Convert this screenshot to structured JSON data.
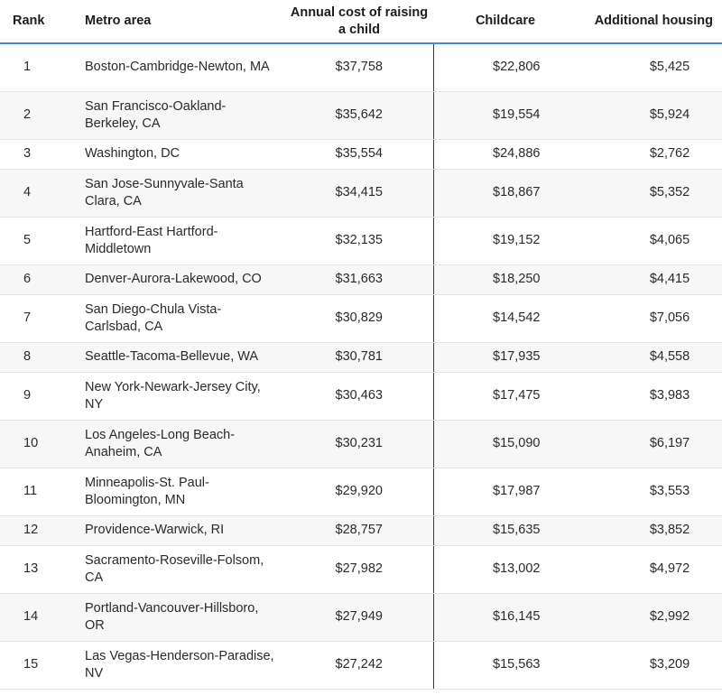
{
  "table": {
    "headers": {
      "rank": "Rank",
      "metro": "Metro area",
      "annual": "Annual cost of raising a child",
      "childcare": "Childcare",
      "housing": "Additional housing"
    },
    "rows": [
      {
        "rank": "1",
        "metro": "Boston-Cambridge-Newton, MA",
        "annual": "$37,758",
        "childcare": "$22,806",
        "housing": "$5,425"
      },
      {
        "rank": "2",
        "metro": "San Francisco-Oakland-Berkeley, CA",
        "annual": "$35,642",
        "childcare": "$19,554",
        "housing": "$5,924"
      },
      {
        "rank": "3",
        "metro": "Washington, DC",
        "annual": "$35,554",
        "childcare": "$24,886",
        "housing": "$2,762"
      },
      {
        "rank": "4",
        "metro": "San Jose-Sunnyvale-Santa Clara, CA",
        "annual": "$34,415",
        "childcare": "$18,867",
        "housing": "$5,352"
      },
      {
        "rank": "5",
        "metro": "Hartford-East Hartford-Middletown",
        "annual": "$32,135",
        "childcare": "$19,152",
        "housing": "$4,065"
      },
      {
        "rank": "6",
        "metro": "Denver-Aurora-Lakewood, CO",
        "annual": "$31,663",
        "childcare": "$18,250",
        "housing": "$4,415"
      },
      {
        "rank": "7",
        "metro": "San Diego-Chula Vista-Carlsbad, CA",
        "annual": "$30,829",
        "childcare": "$14,542",
        "housing": "$7,056"
      },
      {
        "rank": "8",
        "metro": "Seattle-Tacoma-Bellevue, WA",
        "annual": "$30,781",
        "childcare": "$17,935",
        "housing": "$4,558"
      },
      {
        "rank": "9",
        "metro": "New York-Newark-Jersey City, NY",
        "annual": "$30,463",
        "childcare": "$17,475",
        "housing": "$3,983"
      },
      {
        "rank": "10",
        "metro": "Los Angeles-Long Beach-Anaheim, CA",
        "annual": "$30,231",
        "childcare": "$15,090",
        "housing": "$6,197"
      },
      {
        "rank": "11",
        "metro": "Minneapolis-St. Paul-Bloomington, MN",
        "annual": "$29,920",
        "childcare": "$17,987",
        "housing": "$3,553"
      },
      {
        "rank": "12",
        "metro": "Providence-Warwick, RI",
        "annual": "$28,757",
        "childcare": "$15,635",
        "housing": "$3,852"
      },
      {
        "rank": "13",
        "metro": "Sacramento-Roseville-Folsom, CA",
        "annual": "$27,982",
        "childcare": "$13,002",
        "housing": "$4,972"
      },
      {
        "rank": "14",
        "metro": "Portland-Vancouver-Hillsboro, OR",
        "annual": "$27,949",
        "childcare": "$16,145",
        "housing": "$2,992"
      },
      {
        "rank": "15",
        "metro": "Las Vegas-Henderson-Paradise, NV",
        "annual": "$27,242",
        "childcare": "$15,563",
        "housing": "$3,209"
      }
    ]
  },
  "colors": {
    "header_rule": "#3d8fd8",
    "stripe": "#f7f7f7",
    "row_divider": "#e3e3e3"
  }
}
